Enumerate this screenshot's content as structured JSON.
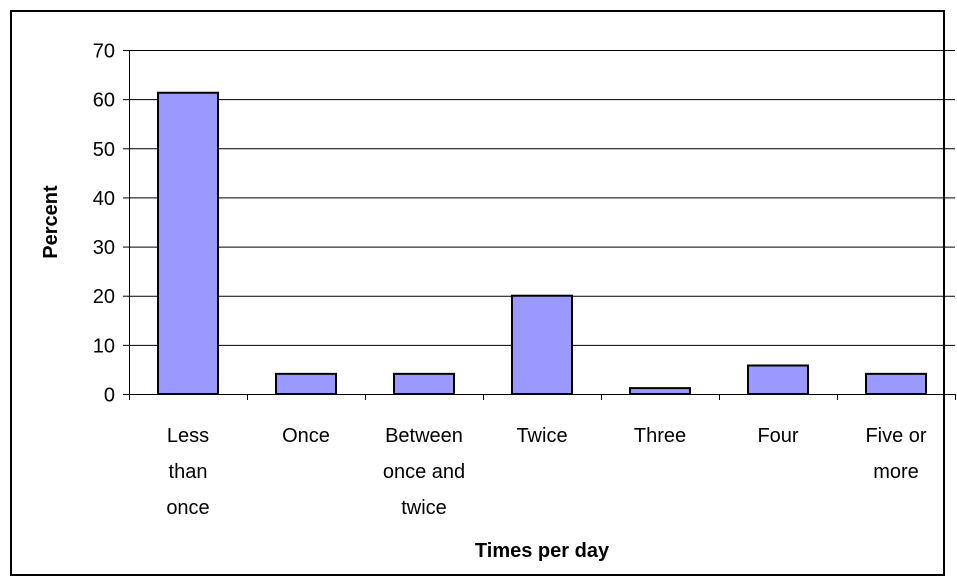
{
  "chart_data": {
    "type": "bar",
    "title": "",
    "xlabel": "Times per day",
    "ylabel": "Percent",
    "categories": [
      [
        "Less",
        "than",
        "once"
      ],
      [
        "Once"
      ],
      [
        "Between",
        "once and",
        "twice"
      ],
      [
        "Twice"
      ],
      [
        "Three"
      ],
      [
        "Four"
      ],
      [
        "Five or",
        "more"
      ]
    ],
    "values": [
      61.3,
      4.1,
      4.1,
      20.0,
      1.2,
      5.8,
      4.1
    ],
    "ylim": [
      0,
      70
    ],
    "yticks": [
      0,
      10,
      20,
      30,
      40,
      50,
      60,
      70
    ],
    "grid": true,
    "legend": "none",
    "colors": {
      "bar_fill": "#9999ff",
      "bar_stroke": "#000000",
      "grid": "#000000",
      "axis": "#000000",
      "background": "#ffffff"
    }
  }
}
